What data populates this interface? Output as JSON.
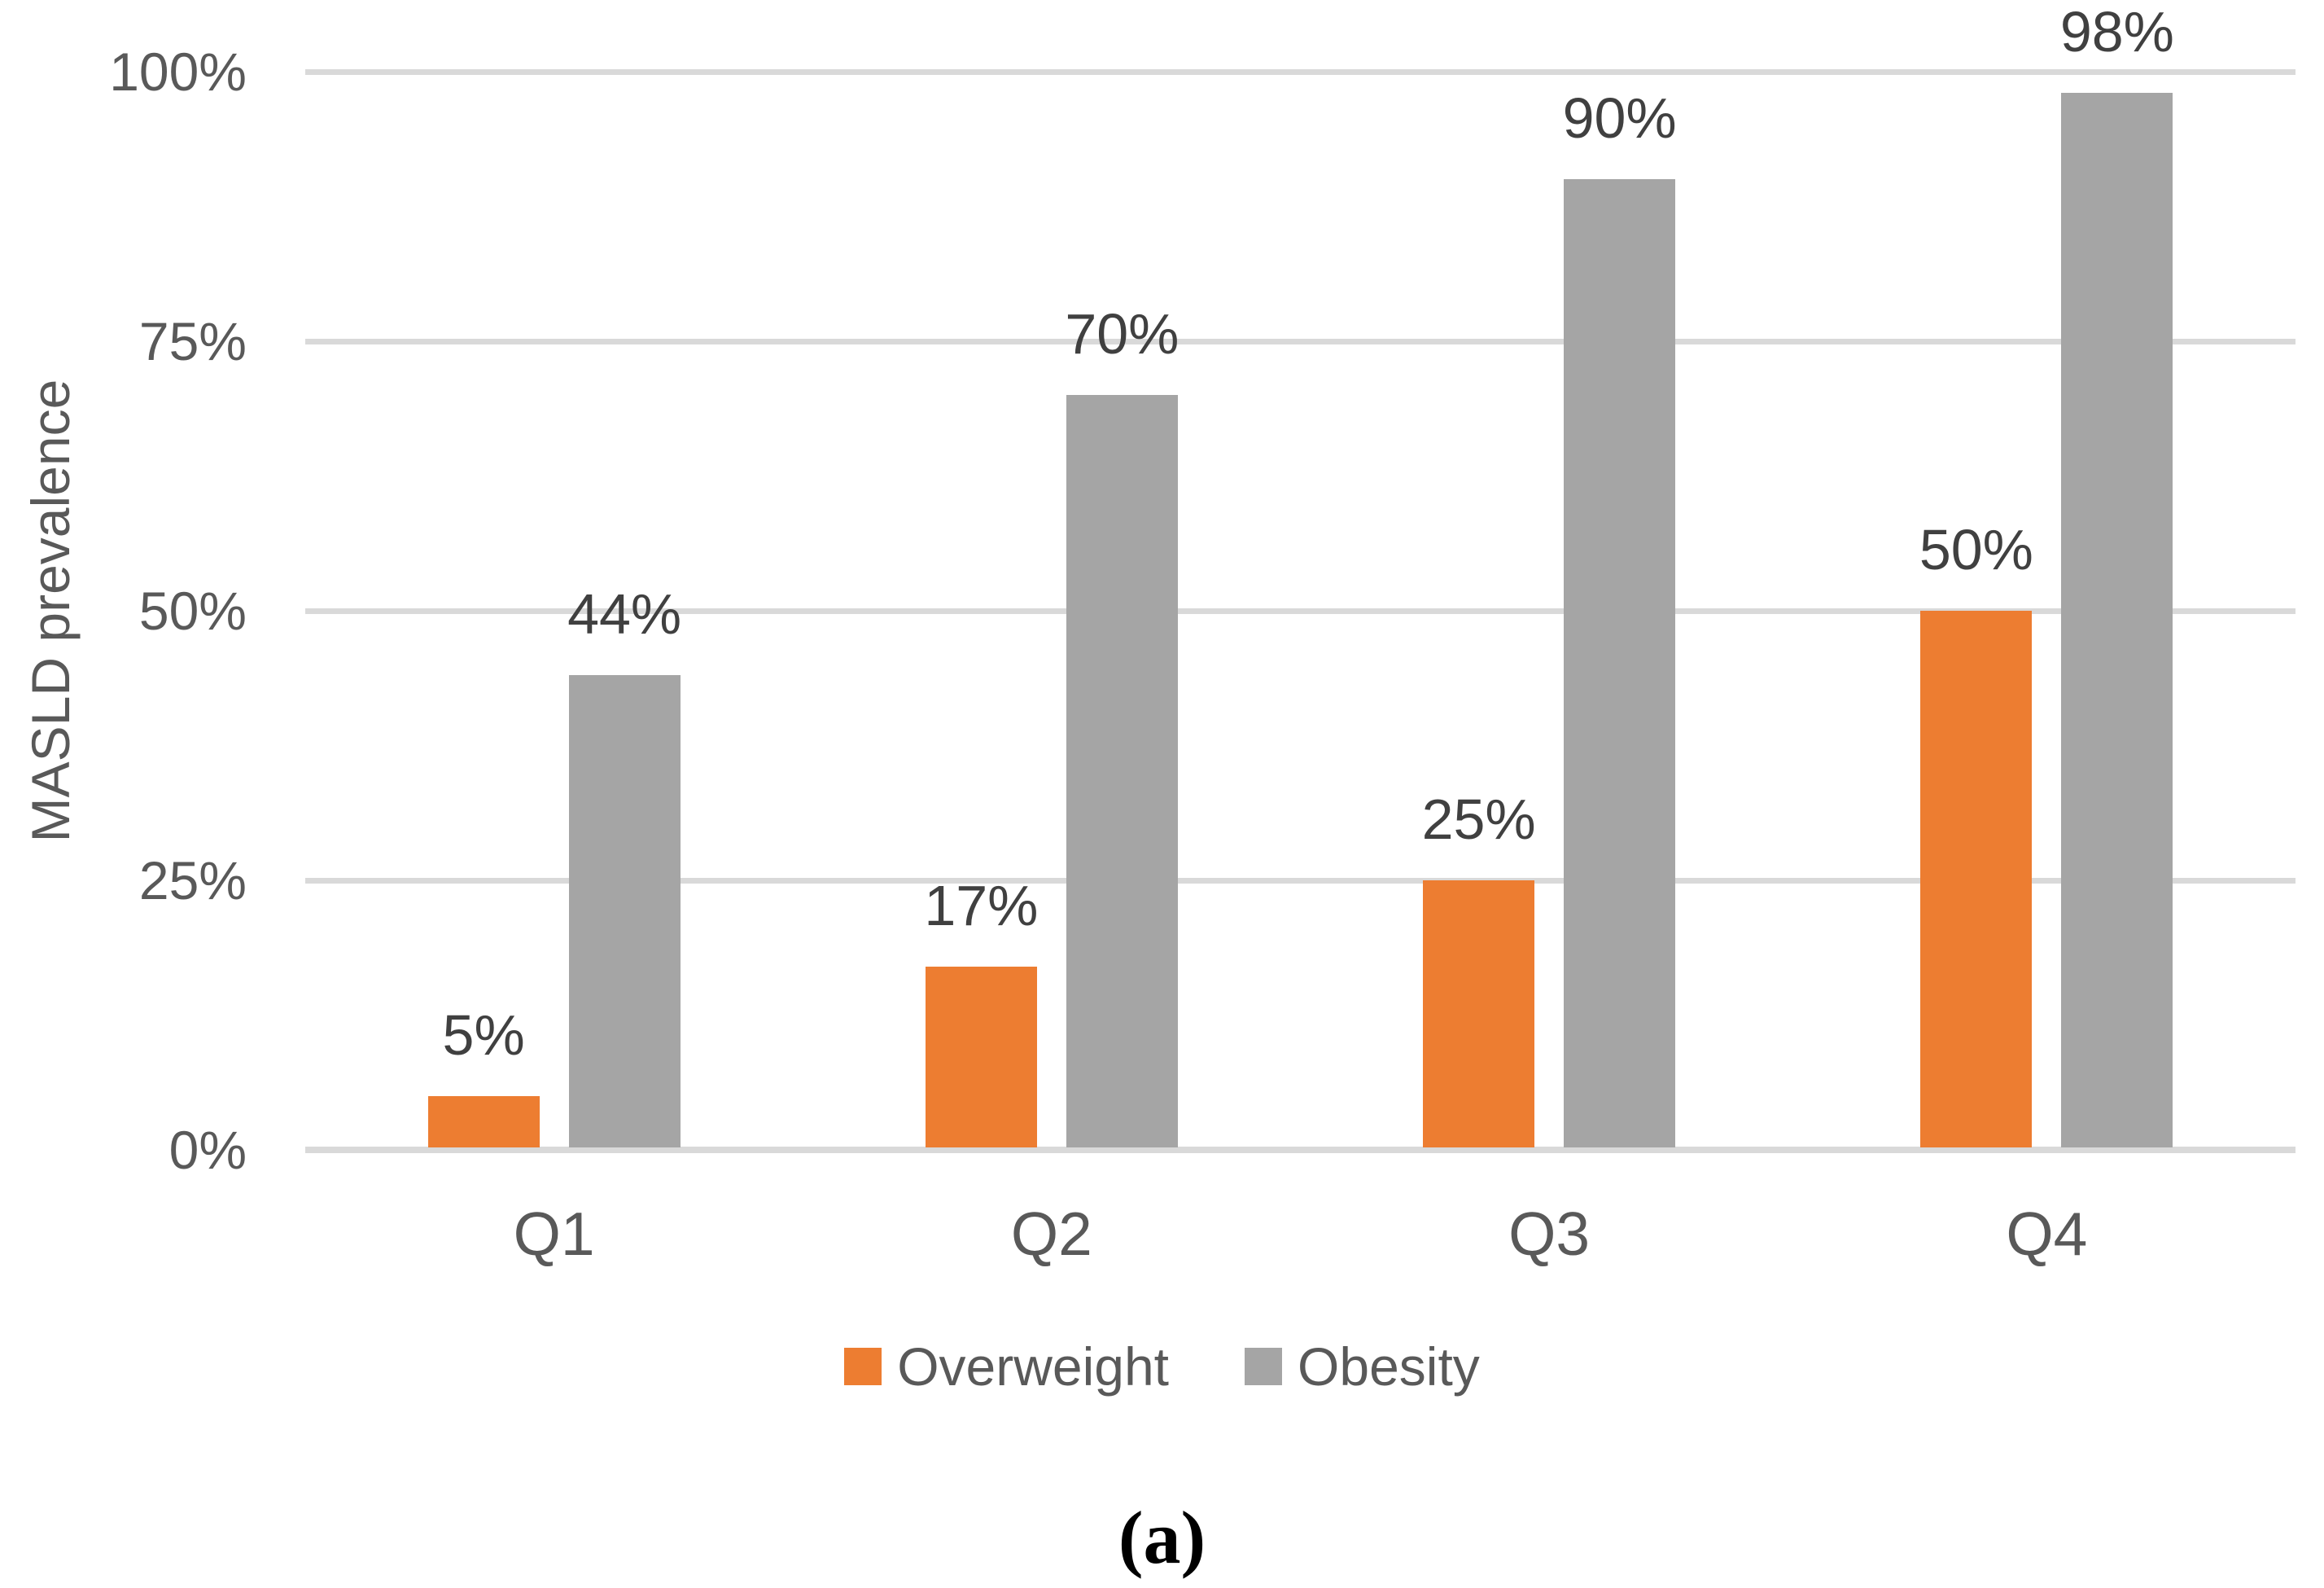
{
  "caption": "(a)",
  "chart_data": {
    "type": "bar",
    "title": "",
    "xlabel": "",
    "ylabel": "MASLD prevalence",
    "categories": [
      "Q1",
      "Q2",
      "Q3",
      "Q4"
    ],
    "series": [
      {
        "name": "Overweight",
        "color": "#ED7D31",
        "values": [
          5,
          17,
          25,
          50
        ],
        "labels": [
          "5%",
          "17%",
          "25%",
          "50%"
        ]
      },
      {
        "name": "Obesity",
        "color": "#A5A5A5",
        "values": [
          44,
          70,
          90,
          98
        ],
        "labels": [
          "44%",
          "70%",
          "90%",
          "98%"
        ]
      }
    ],
    "ylim": [
      0,
      100
    ],
    "yticks": [
      {
        "value": 0,
        "label": "0%"
      },
      {
        "value": 25,
        "label": "25%"
      },
      {
        "value": 50,
        "label": "50%"
      },
      {
        "value": 75,
        "label": "75%"
      },
      {
        "value": 100,
        "label": "100%"
      }
    ],
    "grid": "horizontal",
    "legend_position": "bottom",
    "gridline_color": "#D9D9D9",
    "axis_text_color": "#595959",
    "data_label_color": "#404040"
  }
}
